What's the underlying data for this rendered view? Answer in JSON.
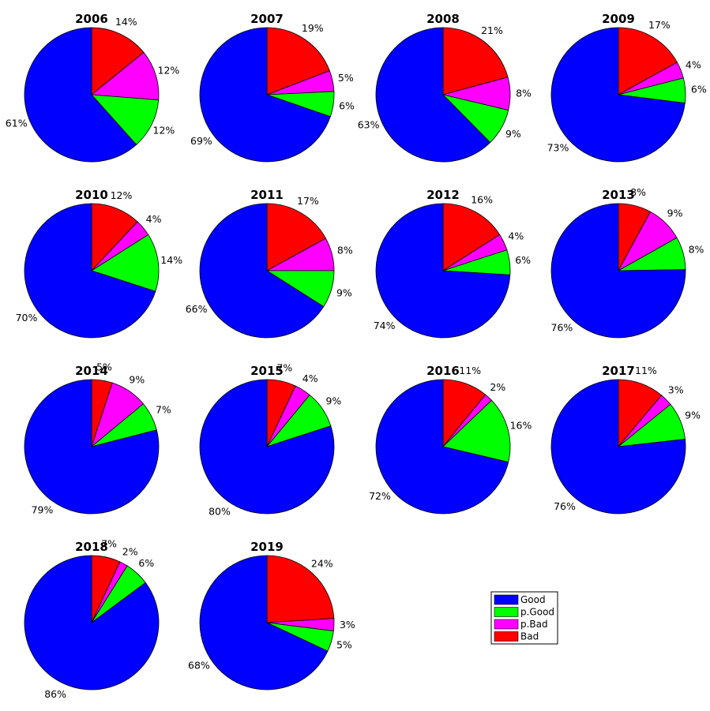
{
  "chart_data": {
    "type": "pie",
    "categories": [
      "Bad",
      "p.Bad",
      "p.Good",
      "Good"
    ],
    "colors": {
      "Bad": "#ff0000",
      "p.Bad": "#ff00ff",
      "p.Good": "#00ff00",
      "Good": "#0000ff"
    },
    "legend": {
      "placement": "bottom-right",
      "entries": [
        "Good",
        "p.Good",
        "p.Bad",
        "Bad"
      ]
    },
    "pies": [
      {
        "title": "2006",
        "values": [
          14,
          12,
          12,
          61
        ],
        "labels": [
          "14%",
          "12%",
          "12%",
          "61%"
        ]
      },
      {
        "title": "2007",
        "values": [
          19,
          5,
          6,
          69
        ],
        "labels": [
          "19%",
          "5%",
          "6%",
          "69%"
        ]
      },
      {
        "title": "2008",
        "values": [
          21,
          8,
          9,
          63
        ],
        "labels": [
          "21%",
          "8%",
          "9%",
          "63%"
        ]
      },
      {
        "title": "2009",
        "values": [
          17,
          4,
          6,
          73
        ],
        "labels": [
          "17%",
          "4%",
          "6%",
          "73%"
        ]
      },
      {
        "title": "2010",
        "values": [
          12,
          4,
          14,
          70
        ],
        "labels": [
          "12%",
          "4%",
          "14%",
          "70%"
        ]
      },
      {
        "title": "2011",
        "values": [
          17,
          8,
          9,
          66
        ],
        "labels": [
          "17%",
          "8%",
          "9%",
          "66%"
        ]
      },
      {
        "title": "2012",
        "values": [
          16,
          4,
          6,
          74
        ],
        "labels": [
          "16%",
          "4%",
          "6%",
          "74%"
        ]
      },
      {
        "title": "2013",
        "values": [
          8,
          9,
          8,
          76
        ],
        "labels": [
          "8%",
          "9%",
          "8%",
          "76%"
        ]
      },
      {
        "title": "2014",
        "values": [
          5,
          9,
          7,
          79
        ],
        "labels": [
          "5%",
          "9%",
          "7%",
          "79%"
        ]
      },
      {
        "title": "2015",
        "values": [
          7,
          4,
          9,
          80
        ],
        "labels": [
          "7%",
          "4%",
          "9%",
          "80%"
        ]
      },
      {
        "title": "2016",
        "values": [
          11,
          2,
          16,
          72
        ],
        "labels": [
          "11%",
          "2%",
          "16%",
          "72%"
        ]
      },
      {
        "title": "2017",
        "values": [
          11,
          3,
          9,
          76
        ],
        "labels": [
          "11%",
          "3%",
          "9%",
          "76%"
        ]
      },
      {
        "title": "2018",
        "values": [
          7,
          2,
          6,
          86
        ],
        "labels": [
          "7%",
          "2%",
          "6%",
          "86%"
        ]
      },
      {
        "title": "2019",
        "values": [
          24,
          3,
          5,
          68
        ],
        "labels": [
          "24%",
          "3%",
          "5%",
          "68%"
        ]
      }
    ]
  }
}
